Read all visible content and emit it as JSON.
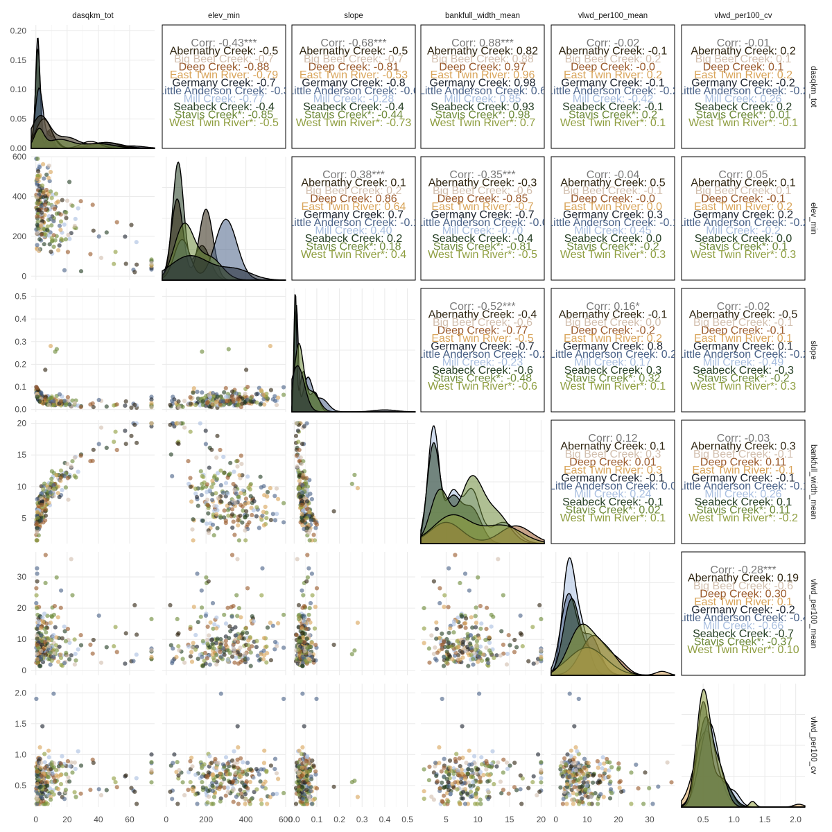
{
  "chart_data": {
    "type": "scatter",
    "matrix": "pairs",
    "variables": [
      "dasqkm_tot",
      "elev_min",
      "slope",
      "bankfull_width_mean",
      "vlwd_per100_mean",
      "vlwd_per100_cv"
    ],
    "groups": [
      {
        "name": "Abernathy Creek",
        "color": "#2e2410"
      },
      {
        "name": "Big Beef Creek",
        "color": "#d2bfae"
      },
      {
        "name": "Deep Creek",
        "color": "#9a5a2c"
      },
      {
        "name": "East Twin River",
        "color": "#d9a55b"
      },
      {
        "name": "Germany Creek",
        "color": "#1e2530"
      },
      {
        "name": "Little Anderson Creek",
        "color": "#4a6288"
      },
      {
        "name": "Mill Creek",
        "color": "#a9bfe0"
      },
      {
        "name": "Seabeck Creek",
        "color": "#243e23"
      },
      {
        "name": "Stavis Creek",
        "color": "#6e8a3a"
      },
      {
        "name": "West Twin River",
        "color": "#8f9e40"
      }
    ],
    "upper_labels": [
      "Corr: -0.43***",
      "Abernathy Creek: -0.5",
      "Big Beef Creek: -0.7",
      "Deep Creek: -0.88",
      "East Twin River: -0.79",
      "Germany Creek: -0.7",
      "Little Anderson Creek: -0.3",
      "Mill Creek: -0.77",
      "Seabeck Creek: -0.4",
      "Stavis Creek*: -0.85",
      "West Twin River*: -0.5",
      "Corr: -0.68***",
      "Abernathy Creek: -0.5",
      "Big Beef Creek: -0.7",
      "Deep Creek: -0.81",
      "East Twin River: -0.53",
      "Germany Creek: -0.8",
      "Little Anderson Creek: -0.6",
      "Mill Creek: -0.28",
      "Seabeck Creek: -0.4",
      "Stavis Creek*: -0.44",
      "West Twin River*: -0.73",
      "Corr: 0.88***",
      "Abernathy Creek: 0.82",
      "Big Beef Creek: 0.88",
      "Deep Creek: 0.97",
      "East Twin River: 0.96",
      "Germany Creek: 0.98",
      "Little Anderson Creek: 0.6",
      "Mill Creek: 0.85",
      "Seabeck Creek: 0.93",
      "Stavis Creek*: 0.98",
      "West Twin River*: 0.7",
      "Corr: -0.02",
      "Abernathy Creek: -0.1",
      "Big Beef Creek: 0.2",
      "Deep Creek: -0.0",
      "East Twin River: 0.2",
      "Germany Creek: -0.1",
      "Little Anderson Creek: -0.2",
      "Mill Creek: -0.42",
      "Seabeck Creek: -0.1",
      "Stavis Creek*: 0.2",
      "West Twin River*: 0.1",
      "Corr: -0.01",
      "Abernathy Creek: 0.2",
      "Big Beef Creek: 0.1",
      "Deep Creek: 0.1",
      "East Twin River: 0.2",
      "Germany Creek: -0.2",
      "Little Anderson Creek: -0.2",
      "Mill Creek: 0.26",
      "Seabeck Creek: 0.2",
      "Stavis Creek*: 0.01",
      "West Twin River*: -0.1",
      "Corr: 0.38***",
      "Abernathy Creek: 0.1",
      "Big Beef Creek: 0.2",
      "Deep Creek: 0.86",
      "East Twin River: 0.64",
      "Germany Creek: 0.7",
      "Little Anderson Creek: -0.1",
      "Mill Creek: 0.40",
      "Seabeck Creek: 0.2",
      "Stavis Creek*: 0.18",
      "West Twin River*: 0.4",
      "Corr: -0.35***",
      "Abernathy Creek: -0.3",
      "Big Beef Creek: -0.6",
      "Deep Creek: -0.85",
      "East Twin River: -0.7",
      "Germany Creek: -0.7",
      "Little Anderson Creek: -0.0",
      "Mill Creek: -0.70",
      "Seabeck Creek: -0.4",
      "Stavis Creek*: -0.81",
      "West Twin River*: -0.5",
      "Corr: -0.04",
      "Abernathy Creek: 0.5",
      "Big Beef Creek: -0.1",
      "Deep Creek: -0.0",
      "East Twin River: 0.0",
      "Germany Creek: 0.3",
      "Little Anderson Creek: -0.1",
      "Mill Creek: 0.45",
      "Seabeck Creek: 0.0",
      "Stavis Creek*: -0.2",
      "West Twin River*: 0.3",
      "Corr: 0.05",
      "Abernathy Creek: 0.1",
      "Big Beef Creek: 0.1",
      "Deep Creek: -0.1",
      "East Twin River: 0.2",
      "Germany Creek: 0.2",
      "Little Anderson Creek: -0.2",
      "Mill Creek: -0.2",
      "Seabeck Creek: 0.0",
      "Stavis Creek*: 0.1",
      "West Twin River*: 0.3",
      "Corr: -0.52***",
      "Abernathy Creek: -0.4",
      "Big Beef Creek: -0.6",
      "Deep Creek: -0.77",
      "East Twin River: -0.5",
      "Germany Creek: -0.7",
      "Little Anderson Creek: -0.2",
      "Mill Creek: -0.23",
      "Seabeck Creek: -0.6",
      "Stavis Creek*: -0.48",
      "West Twin River*: -0.6",
      "Corr: 0.16*",
      "Abernathy Creek: -0.1",
      "Big Beef Creek: 0.0",
      "Deep Creek: -0.2",
      "East Twin River: 0.2",
      "Germany Creek: 0.8",
      "Little Anderson Creek: 0.2",
      "Mill Creek: 0.17",
      "Seabeck Creek: 0.3",
      "Stavis Creek*: 0.32",
      "West Twin River*: 0.1",
      "Corr: -0.02",
      "Abernathy Creek: -0.5",
      "Big Beef Creek: -0.1",
      "Deep Creek: -0.1",
      "East Twin River: 0.1",
      "Germany Creek: 0.1",
      "Little Anderson Creek: -0.2",
      "Mill Creek: -0.49",
      "Seabeck Creek: -0.3",
      "Stavis Creek*: -0.2",
      "West Twin River*: 0.3",
      "Corr: 0.12",
      "Abernathy Creek: 0.1",
      "Big Beef Creek: 0.3",
      "Deep Creek: 0.01",
      "East Twin River: 0.3",
      "Germany Creek: -0.1",
      "Little Anderson Creek: 0.0",
      "Mill Creek: 0.24",
      "Seabeck Creek: -0.1",
      "Stavis Creek*: 0.02",
      "West Twin River*: 0.1",
      "Corr: -0.03",
      "Abernathy Creek: 0.3",
      "Big Beef Creek: -0.1",
      "Deep Creek: 0.11",
      "East Twin River: -0.1",
      "Germany Creek: -0.1",
      "Little Anderson Creek: -0.1",
      "Mill Creek: 0.26",
      "Seabeck Creek: 0.1",
      "Stavis Creek*: 0.11",
      "West Twin River*: -0.2",
      "Corr: -0.28***",
      "Abernathy Creek: 0.19",
      "Big Beef Creek: -0.6",
      "Deep Creek: 0.30",
      "East Twin River: 0.1",
      "Germany Creek: -0.2",
      "Little Anderson Creek: -0.4",
      "Mill Creek: -0.66",
      "Seabeck Creek: -0.7",
      "Stavis Creek*: -0.37",
      "West Twin River*: 0.10"
    ],
    "ranges": [
      [
        -3,
        76
      ],
      [
        -20,
        600
      ],
      [
        -0.01,
        0.535
      ],
      [
        1,
        20.5
      ],
      [
        -1.5,
        38
      ],
      [
        0.15,
        2.15
      ]
    ],
    "ticks": [
      [
        0,
        20,
        40,
        60
      ],
      [
        0,
        200,
        400,
        600
      ],
      [
        0,
        0.1,
        0.2,
        0.3,
        0.4,
        0.5
      ],
      [
        5,
        10,
        15,
        20
      ],
      [
        0,
        10,
        20,
        30
      ],
      [
        0.5,
        1.0,
        1.5,
        2.0
      ]
    ],
    "tick_labels": [
      [
        "0",
        "20",
        "40",
        "60"
      ],
      [
        "0",
        "200",
        "400",
        "600"
      ],
      [
        "0.0",
        "0.1",
        "0.2",
        "0.3",
        "0.4",
        "0.5"
      ],
      [
        "5",
        "10",
        "15",
        "20"
      ],
      [
        "0",
        "10",
        "20",
        "30"
      ],
      [
        "0.5",
        "1.0",
        "1.5",
        "2.0"
      ]
    ],
    "y_ticks_first_panel": [
      0,
      0.05,
      0.1,
      0.15,
      0.2
    ],
    "y_tick_labels_first_panel": [
      "0.00",
      "0.05",
      "0.10",
      "0.15",
      "0.20"
    ],
    "density_range_first_panel": [
      0,
      0.21
    ],
    "densities": [
      [
        {
          "group": 4,
          "peaks": [
            [
              1.2,
              0.19,
              1.4
            ],
            [
              9,
              0.032,
              2
            ],
            [
              40,
              0.008,
              8
            ],
            [
              62,
              0.004,
              8
            ]
          ]
        },
        {
          "group": 7,
          "peaks": [
            [
              1.3,
              0.17,
              1.6
            ],
            [
              8,
              0.03,
              2
            ]
          ]
        },
        {
          "group": 5,
          "peaks": [
            [
              2,
              0.1,
              2.5
            ],
            [
              10,
              0.02,
              4
            ],
            [
              45,
              0.01,
              8
            ]
          ]
        },
        {
          "group": 1,
          "peaks": [
            [
              5,
              0.05,
              5
            ],
            [
              35,
              0.012,
              6
            ]
          ]
        },
        {
          "group": 0,
          "peaks": [
            [
              3,
              0.055,
              6
            ],
            [
              20,
              0.018,
              7
            ],
            [
              45,
              0.01,
              10
            ]
          ]
        },
        {
          "group": 8,
          "peaks": [
            [
              2,
              0.03,
              3
            ],
            [
              15,
              0.015,
              8
            ],
            [
              40,
              0.008,
              10
            ]
          ]
        }
      ],
      [
        {
          "group": 7,
          "peaks": [
            [
              60,
              0.0058,
              28
            ],
            [
              180,
              0.0017,
              40
            ]
          ]
        },
        {
          "group": 0,
          "peaks": [
            [
              55,
              0.004,
              30
            ],
            [
              200,
              0.0035,
              35
            ]
          ]
        },
        {
          "group": 5,
          "peaks": [
            [
              80,
              0.002,
              40
            ],
            [
              300,
              0.003,
              55
            ]
          ]
        },
        {
          "group": 8,
          "peaks": [
            [
              90,
              0.0027,
              50
            ],
            [
              220,
              0.0011,
              60
            ]
          ]
        },
        {
          "group": 4,
          "peaks": [
            [
              120,
              0.0012,
              100
            ],
            [
              350,
              0.0005,
              80
            ]
          ]
        }
      ],
      [
        {
          "group": 5,
          "peaks": [
            [
              0.01,
              16,
              0.008
            ],
            [
              0.06,
              5,
              0.02
            ],
            [
              0.12,
              2,
              0.03
            ]
          ]
        },
        {
          "group": 7,
          "peaks": [
            [
              0.005,
              18,
              0.006
            ],
            [
              0.04,
              6,
              0.015
            ],
            [
              0.09,
              3,
              0.02
            ]
          ]
        },
        {
          "group": 8,
          "peaks": [
            [
              0.02,
              10,
              0.02
            ],
            [
              0.08,
              3,
              0.03
            ]
          ]
        },
        {
          "group": 4,
          "peaks": [
            [
              0.015,
              7,
              0.03
            ],
            [
              0.4,
              0.3,
              0.05
            ]
          ]
        }
      ],
      [
        {
          "group": 6,
          "peaks": [
            [
              3,
              0.33,
              0.9
            ],
            [
              6,
              0.14,
              1.1
            ],
            [
              9,
              0.15,
              1.3
            ],
            [
              14,
              0.06,
              2
            ]
          ]
        },
        {
          "group": 7,
          "peaks": [
            [
              3,
              0.28,
              1
            ],
            [
              6,
              0.12,
              1.2
            ],
            [
              9,
              0.1,
              1.5
            ]
          ]
        },
        {
          "group": 8,
          "peaks": [
            [
              4,
              0.15,
              1.5
            ],
            [
              9,
              0.18,
              1.8
            ],
            [
              13,
              0.08,
              2
            ]
          ]
        },
        {
          "group": 2,
          "peaks": [
            [
              5,
              0.06,
              2.5
            ],
            [
              16,
              0.05,
              2.5
            ]
          ]
        },
        {
          "group": 9,
          "peaks": [
            [
              6,
              0.08,
              3
            ],
            [
              14,
              0.05,
              3
            ]
          ]
        }
      ],
      [
        {
          "group": 6,
          "peaks": [
            [
              4,
              0.13,
              2
            ],
            [
              8,
              0.06,
              2.5
            ]
          ]
        },
        {
          "group": 5,
          "peaks": [
            [
              4,
              0.1,
              2.5
            ],
            [
              11,
              0.05,
              3
            ]
          ]
        },
        {
          "group": 7,
          "peaks": [
            [
              5,
              0.095,
              2.6
            ],
            [
              12,
              0.03,
              3
            ]
          ]
        },
        {
          "group": 2,
          "peaks": [
            [
              12,
              0.05,
              4
            ],
            [
              20,
              0.015,
              3
            ]
          ]
        },
        {
          "group": 3,
          "peaks": [
            [
              10,
              0.035,
              6
            ],
            [
              34,
              0.005,
              2
            ]
          ]
        },
        {
          "group": 9,
          "peaks": [
            [
              8,
              0.06,
              4
            ],
            [
              16,
              0.03,
              4
            ]
          ]
        }
      ],
      [
        {
          "group": 3,
          "peaks": [
            [
              0.55,
              2.7,
              0.18
            ],
            [
              2.05,
              0.1,
              0.08
            ]
          ]
        },
        {
          "group": 6,
          "peaks": [
            [
              0.6,
              3.0,
              0.15
            ],
            [
              1.0,
              0.5,
              0.1
            ]
          ]
        },
        {
          "group": 5,
          "peaks": [
            [
              0.55,
              3.2,
              0.14
            ],
            [
              0.9,
              0.6,
              0.1
            ]
          ]
        },
        {
          "group": 7,
          "peaks": [
            [
              0.5,
              3.6,
              0.1
            ],
            [
              0.8,
              1.0,
              0.15
            ]
          ]
        },
        {
          "group": 9,
          "peaks": [
            [
              0.5,
              4.0,
              0.11
            ],
            [
              0.75,
              1.4,
              0.12
            ],
            [
              1.3,
              0.2,
              0.05
            ]
          ]
        }
      ]
    ]
  }
}
